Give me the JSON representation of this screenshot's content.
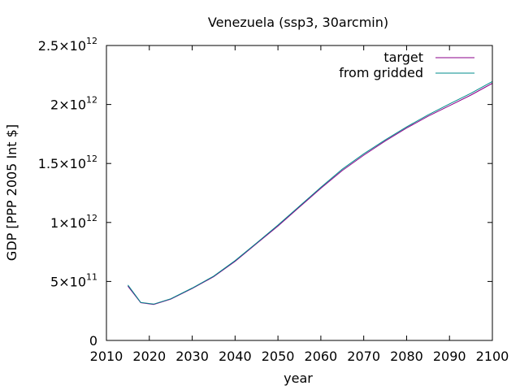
{
  "chart_data": {
    "type": "line",
    "title": "Venezuela (ssp3, 30arcmin)",
    "xlabel": "year",
    "ylabel": "GDP [PPP 2005 Int $]",
    "xlim": [
      2010,
      2100
    ],
    "ylim": [
      0,
      2500000000000
    ],
    "xticks": [
      2010,
      2020,
      2030,
      2040,
      2050,
      2060,
      2070,
      2080,
      2090,
      2100
    ],
    "xtick_labels": [
      "2010",
      "2020",
      "2030",
      "2040",
      "2050",
      "2060",
      "2070",
      "2080",
      "2090",
      "2100"
    ],
    "yticks": [
      {
        "value": 0,
        "mant": "0",
        "exp": ""
      },
      {
        "value": 500000000000,
        "mant": "5×10",
        "exp": "11"
      },
      {
        "value": 1000000000000,
        "mant": "1×10",
        "exp": "12"
      },
      {
        "value": 1500000000000,
        "mant": "1.5×10",
        "exp": "12"
      },
      {
        "value": 2000000000000,
        "mant": "2×10",
        "exp": "12"
      },
      {
        "value": 2500000000000,
        "mant": "2.5×10",
        "exp": "12"
      }
    ],
    "grid": false,
    "legend_position": "top-right",
    "series": [
      {
        "name": "target",
        "color": "#8b008b",
        "x": [
          2015,
          2018,
          2021,
          2025,
          2030,
          2035,
          2040,
          2045,
          2050,
          2055,
          2060,
          2065,
          2070,
          2075,
          2080,
          2085,
          2090,
          2095,
          2100
        ],
        "y": [
          460000000000,
          320000000000,
          305000000000,
          350000000000,
          440000000000,
          540000000000,
          670000000000,
          820000000000,
          970000000000,
          1130000000000,
          1290000000000,
          1440000000000,
          1570000000000,
          1690000000000,
          1800000000000,
          1900000000000,
          1990000000000,
          2080000000000,
          2180000000000
        ]
      },
      {
        "name": "from gridded",
        "color": "#008b8b",
        "x": [
          2015,
          2018,
          2021,
          2025,
          2030,
          2035,
          2040,
          2045,
          2050,
          2055,
          2060,
          2065,
          2070,
          2075,
          2080,
          2085,
          2090,
          2095,
          2100
        ],
        "y": [
          470000000000,
          322000000000,
          308000000000,
          353000000000,
          444000000000,
          545000000000,
          676000000000,
          826000000000,
          978000000000,
          1138000000000,
          1298000000000,
          1452000000000,
          1582000000000,
          1700000000000,
          1810000000000,
          1912000000000,
          2005000000000,
          2095000000000,
          2195000000000
        ]
      }
    ]
  }
}
